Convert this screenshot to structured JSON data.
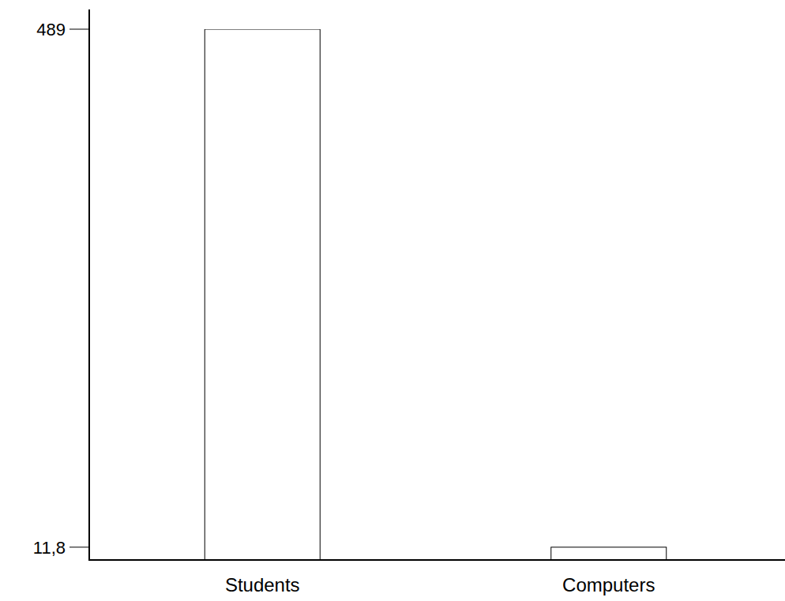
{
  "chart_data": {
    "type": "bar",
    "categories": [
      "Students",
      "Computers"
    ],
    "values": [
      489,
      11.8
    ],
    "color": "#ffffff",
    "ylim": [
      0,
      489
    ],
    "yticks": [
      {
        "value": 11.8,
        "label": "11,8"
      },
      489
    ],
    "grid": false
  }
}
